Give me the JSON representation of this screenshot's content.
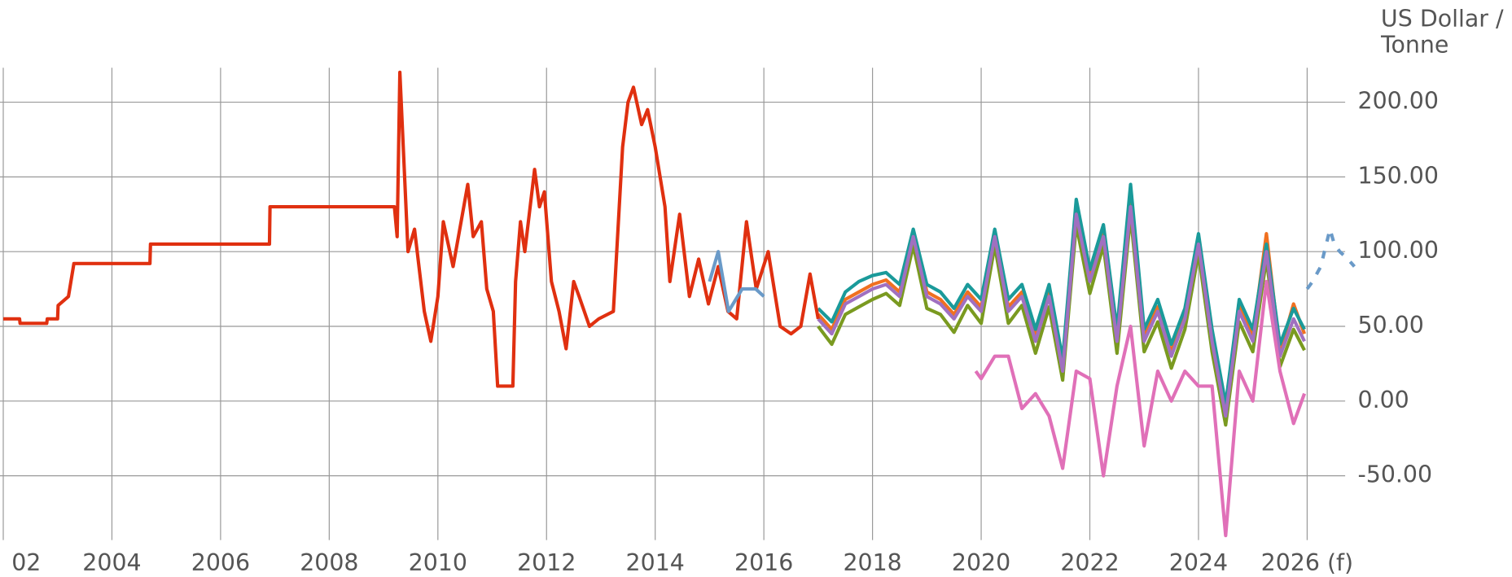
{
  "chart_data": {
    "type": "line",
    "y_label": "US Dollar / Tonne",
    "xlim": [
      2001.94,
      2026.7
    ],
    "xticks": [
      {
        "value": 2002,
        "label": "02"
      },
      2004,
      2006,
      2008,
      2010,
      2012,
      2014,
      2016,
      2018,
      2020,
      2022,
      2024,
      {
        "value": 2026,
        "label": "2026 (f)"
      }
    ],
    "ylim": [
      -93,
      223
    ],
    "yticks": [
      {
        "value": -50,
        "label": "-50.00"
      },
      {
        "value": 0,
        "label": "0.00"
      },
      {
        "value": 50,
        "label": "50.00"
      },
      {
        "value": 100,
        "label": "100.00"
      },
      {
        "value": 150,
        "label": "150.00"
      },
      {
        "value": 200,
        "label": "200.00"
      }
    ],
    "grid": true,
    "series": [
      {
        "color": "#7a9a20",
        "x": [
          2017.0,
          2017.25,
          2017.5,
          2017.75,
          2018.0,
          2018.25,
          2018.5,
          2018.75,
          2019.0,
          2019.25,
          2019.5,
          2019.75,
          2020.0,
          2020.25,
          2020.5,
          2020.75,
          2021.0,
          2021.25,
          2021.5,
          2021.75,
          2022.0,
          2022.25,
          2022.5,
          2022.75,
          2023.0,
          2023.25,
          2023.5,
          2023.75,
          2024.0,
          2024.25,
          2024.5,
          2024.75,
          2025.0,
          2025.25,
          2025.5,
          2025.75,
          2025.95
        ],
        "values": [
          50,
          38,
          58,
          63,
          68,
          72,
          64,
          104,
          62,
          58,
          46,
          64,
          52,
          104,
          52,
          64,
          32,
          63,
          14,
          118,
          72,
          104,
          32,
          124,
          33,
          53,
          22,
          48,
          99,
          33,
          -16,
          53,
          33,
          95,
          23,
          48,
          34
        ]
      },
      {
        "color": "#f07020",
        "x": [
          2017.0,
          2017.25,
          2017.5,
          2017.75,
          2018.0,
          2018.25,
          2018.5,
          2018.75,
          2019.0,
          2019.25,
          2019.5,
          2019.75,
          2020.0,
          2020.25,
          2020.5,
          2020.75,
          2021.0,
          2021.25,
          2021.5,
          2021.75,
          2022.0,
          2022.25,
          2022.5,
          2022.75,
          2023.0,
          2023.25,
          2023.5,
          2023.75,
          2024.0,
          2024.25,
          2024.5,
          2024.75,
          2025.0,
          2025.25,
          2025.5,
          2025.75,
          2025.95
        ],
        "values": [
          58,
          48,
          68,
          73,
          78,
          81,
          73,
          113,
          73,
          68,
          58,
          73,
          63,
          113,
          63,
          73,
          43,
          73,
          23,
          128,
          83,
          113,
          43,
          133,
          43,
          63,
          33,
          58,
          108,
          43,
          -7,
          63,
          43,
          112,
          33,
          65,
          45
        ]
      },
      {
        "color": "#1a9a9a",
        "x": [
          2017.0,
          2017.25,
          2017.5,
          2017.75,
          2018.0,
          2018.25,
          2018.5,
          2018.75,
          2019.0,
          2019.25,
          2019.5,
          2019.75,
          2020.0,
          2020.25,
          2020.5,
          2020.75,
          2021.0,
          2021.25,
          2021.5,
          2021.75,
          2022.0,
          2022.25,
          2022.5,
          2022.75,
          2023.0,
          2023.25,
          2023.5,
          2023.75,
          2024.0,
          2024.25,
          2024.5,
          2024.75,
          2025.0,
          2025.25,
          2025.5,
          2025.75,
          2025.95
        ],
        "values": [
          62,
          53,
          73,
          80,
          84,
          86,
          78,
          115,
          78,
          73,
          62,
          78,
          68,
          115,
          68,
          78,
          48,
          78,
          28,
          135,
          88,
          118,
          48,
          145,
          48,
          68,
          38,
          62,
          112,
          48,
          -2,
          68,
          48,
          105,
          38,
          62,
          48
        ]
      },
      {
        "color": "#a070c0",
        "x": [
          2017.0,
          2017.25,
          2017.5,
          2017.75,
          2018.0,
          2018.25,
          2018.5,
          2018.75,
          2019.0,
          2019.25,
          2019.5,
          2019.75,
          2020.0,
          2020.25,
          2020.5,
          2020.75,
          2021.0,
          2021.25,
          2021.5,
          2021.75,
          2022.0,
          2022.25,
          2022.5,
          2022.75,
          2023.0,
          2023.25,
          2023.5,
          2023.75,
          2024.0,
          2024.25,
          2024.5,
          2024.75,
          2025.0,
          2025.25,
          2025.5,
          2025.75,
          2025.95
        ],
        "values": [
          55,
          45,
          65,
          70,
          75,
          78,
          70,
          110,
          70,
          65,
          55,
          70,
          60,
          110,
          60,
          70,
          40,
          70,
          20,
          125,
          80,
          110,
          40,
          130,
          40,
          60,
          30,
          55,
          105,
          40,
          -10,
          60,
          40,
          100,
          30,
          55,
          40
        ]
      },
      {
        "color": "#e070b8",
        "x": [
          2019.9,
          2020.0,
          2020.25,
          2020.5,
          2020.75,
          2021.0,
          2021.25,
          2021.5,
          2021.75,
          2022.0,
          2022.25,
          2022.5,
          2022.75,
          2023.0,
          2023.25,
          2023.5,
          2023.75,
          2024.0,
          2024.25,
          2024.5,
          2024.75,
          2025.0,
          2025.25,
          2025.5,
          2025.75,
          2025.95
        ],
        "values": [
          20,
          15,
          30,
          30,
          -5,
          5,
          -10,
          -45,
          20,
          15,
          -50,
          10,
          50,
          -30,
          20,
          0,
          20,
          10,
          10,
          -90,
          20,
          0,
          80,
          20,
          -15,
          5
        ]
      },
      {
        "color": "#e03010",
        "x": [
          2002.0,
          2002.3,
          2002.31,
          2002.8,
          2002.81,
          2003.0,
          2003.01,
          2003.2,
          2003.3,
          2004.7,
          2004.71,
          2006.9,
          2006.91,
          2009.2,
          2009.25,
          2009.3,
          2009.35,
          2009.45,
          2009.57,
          2009.75,
          2009.87,
          2010.0,
          2010.1,
          2010.28,
          2010.55,
          2010.65,
          2010.8,
          2010.9,
          2011.02,
          2011.1,
          2011.38,
          2011.43,
          2011.52,
          2011.6,
          2011.78,
          2011.87,
          2011.96,
          2012.09,
          2012.23,
          2012.36,
          2012.5,
          2012.6,
          2012.79,
          2012.96,
          2013.23,
          2013.4,
          2013.5,
          2013.6,
          2013.75,
          2013.86,
          2014.0,
          2014.18,
          2014.27,
          2014.45,
          2014.63,
          2014.8,
          2014.98,
          2015.16,
          2015.34,
          2015.5,
          2015.68,
          2015.86,
          2016.08,
          2016.3,
          2016.5,
          2016.68,
          2016.85,
          2017.0
        ],
        "values": [
          55,
          55,
          52,
          52,
          55,
          55,
          64,
          70,
          92,
          92,
          105,
          105,
          130,
          130,
          110,
          220,
          180,
          100,
          115,
          60,
          40,
          70,
          120,
          90,
          145,
          110,
          120,
          75,
          60,
          10,
          10,
          80,
          120,
          100,
          155,
          130,
          140,
          80,
          60,
          35,
          80,
          70,
          50,
          55,
          60,
          170,
          200,
          210,
          185,
          195,
          170,
          130,
          80,
          125,
          70,
          95,
          65,
          90,
          60,
          55,
          120,
          75,
          100,
          50,
          45,
          50,
          85,
          55
        ]
      },
      {
        "color": "#6a9ac8",
        "x": [
          2015.0,
          2015.16,
          2015.35,
          2015.6,
          2015.85,
          2016.0
        ],
        "values": [
          80,
          100,
          60,
          75,
          75,
          70
        ]
      },
      {
        "color": "#6a9ac8",
        "dash": true,
        "x": [
          2026.0,
          2026.1,
          2026.25,
          2026.42,
          2026.5,
          2026.6,
          2026.75,
          2026.87
        ],
        "values": [
          75,
          80,
          90,
          115,
          105,
          100,
          95,
          90
        ]
      }
    ]
  }
}
